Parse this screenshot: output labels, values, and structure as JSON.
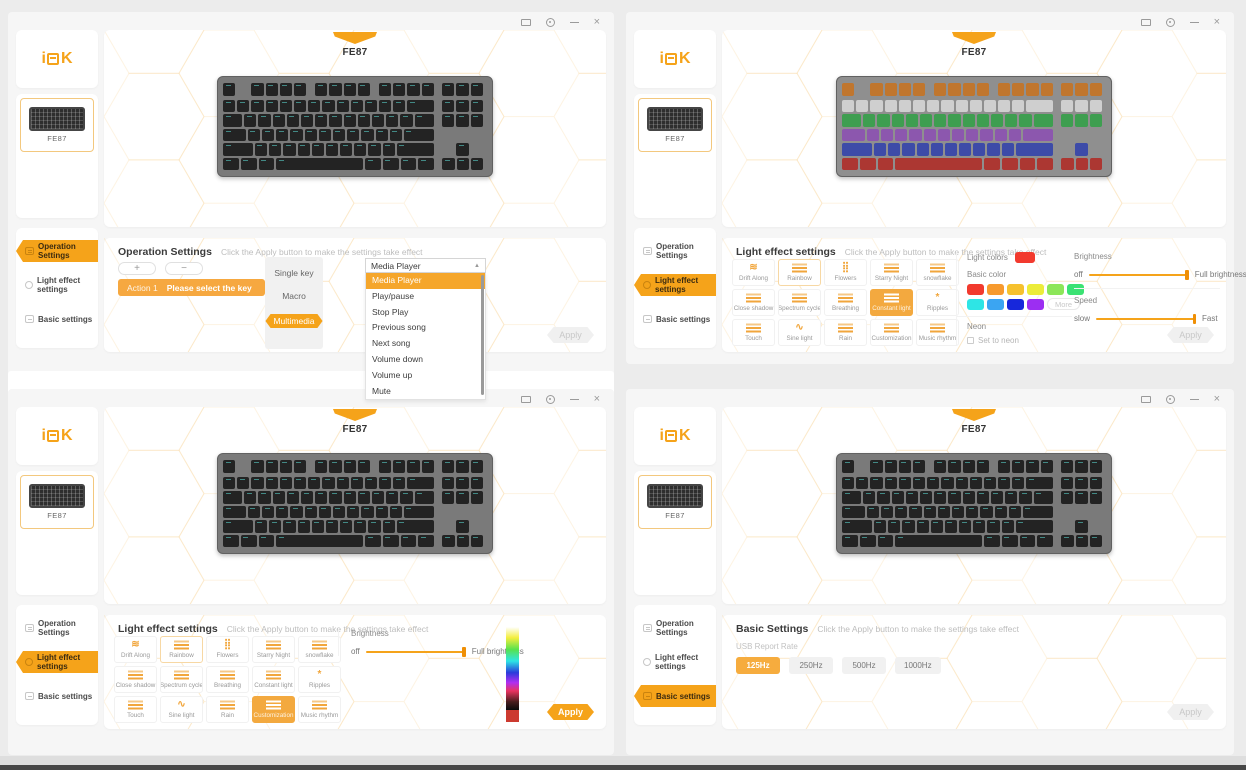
{
  "app": {
    "logo": {
      "left": "i",
      "right": "K"
    },
    "window_controls": {
      "restore": "restore-window",
      "settings": "settings-gear",
      "minimize": "minimize",
      "close": "close"
    }
  },
  "shared": {
    "title": "FE87",
    "device_label": "FE87",
    "hint": "Click the Apply button to make the settings take effect",
    "close_glyph": "×",
    "dropdown_arrow": "▲"
  },
  "keyboard": {
    "body": "#7A7A7A",
    "key": "#232323",
    "legend_teal": "#56CDC6",
    "rgb_rows": [
      "#C0762E",
      "#CFCFCF",
      "#3E9E50",
      "#8C57AE",
      "#3D4BA8",
      "#AC3732"
    ]
  },
  "windows": [
    {
      "name": "operation-settings",
      "menu": [
        {
          "label": "Operation Settings",
          "icon": "keyboard",
          "active": true
        },
        {
          "label": "Light effect settings",
          "icon": "bulb",
          "active": false
        },
        {
          "label": "Basic settings",
          "icon": "card",
          "active": false
        }
      ],
      "panel": {
        "header": "Operation Settings",
        "add": "+",
        "remove": "−",
        "action_label": "Action 1",
        "action_hint": "Please select the key",
        "modes": [
          {
            "label": "Single key",
            "active": false
          },
          {
            "label": "Macro",
            "active": false
          },
          {
            "label": "Multimedia",
            "active": true
          }
        ],
        "dropdown": {
          "value": "Media Player",
          "options": [
            {
              "label": "Media Player",
              "selected": true
            },
            {
              "label": "Play/pause",
              "selected": false
            },
            {
              "label": "Stop Play",
              "selected": false
            },
            {
              "label": "Previous song",
              "selected": false
            },
            {
              "label": "Next song",
              "selected": false
            },
            {
              "label": "Volume down",
              "selected": false
            },
            {
              "label": "Volume up",
              "selected": false
            },
            {
              "label": "Mute",
              "selected": false
            }
          ]
        },
        "apply": "Apply"
      }
    },
    {
      "name": "light-effect-constant",
      "menu": [
        {
          "label": "Operation Settings",
          "icon": "keyboard",
          "active": false
        },
        {
          "label": "Light effect settings",
          "icon": "bulb",
          "active": true
        },
        {
          "label": "Basic settings",
          "icon": "card",
          "active": false
        }
      ],
      "panel": {
        "header": "Light effect settings",
        "effects": [
          {
            "label": "Drift Along"
          },
          {
            "label": "Rainbow",
            "outlined": true
          },
          {
            "label": "Flowers"
          },
          {
            "label": "Starry Night"
          },
          {
            "label": "snowflake"
          },
          {
            "label": "Close shadow"
          },
          {
            "label": "Spectrum cycle"
          },
          {
            "label": "Breathing"
          },
          {
            "label": "Constant light",
            "active": true
          },
          {
            "label": "Ripples"
          },
          {
            "label": "Touch"
          },
          {
            "label": "Sine light"
          },
          {
            "label": "Rain"
          },
          {
            "label": "Customization"
          },
          {
            "label": "Music rhythm"
          }
        ],
        "light_colors_label": "Light colors",
        "light_color": "#F23A2E",
        "basic_color_label": "Basic color",
        "palette": [
          "#F23A2E",
          "#F79A2E",
          "#F6C12E",
          "#ECEC3A",
          "#8CE659",
          "#3BE273",
          "#2EE5E5",
          "#3BA5F2",
          "#1727DB",
          "#9C2EF2"
        ],
        "more_label": "More",
        "neon_label": "Neon",
        "neon_checkbox": "Set to neon",
        "brightness": {
          "label": "Brightness",
          "min": "off",
          "max": "Full brightness"
        },
        "speed": {
          "label": "Speed",
          "min": "slow",
          "max": "Fast"
        },
        "apply": "Apply"
      }
    },
    {
      "name": "light-effect-customization",
      "menu": [
        {
          "label": "Operation Settings",
          "icon": "keyboard",
          "active": false
        },
        {
          "label": "Light effect settings",
          "icon": "bulb",
          "active": true
        },
        {
          "label": "Basic settings",
          "icon": "card",
          "active": false
        }
      ],
      "panel": {
        "header": "Light effect settings",
        "effects": [
          {
            "label": "Drift Along"
          },
          {
            "label": "Rainbow",
            "outlined": true
          },
          {
            "label": "Flowers"
          },
          {
            "label": "Starry Night"
          },
          {
            "label": "snowflake"
          },
          {
            "label": "Close shadow"
          },
          {
            "label": "Spectrum cycle"
          },
          {
            "label": "Breathing"
          },
          {
            "label": "Constant light"
          },
          {
            "label": "Ripples"
          },
          {
            "label": "Touch"
          },
          {
            "label": "Sine light"
          },
          {
            "label": "Rain"
          },
          {
            "label": "Customization",
            "active": true
          },
          {
            "label": "Music rhythm"
          }
        ],
        "brightness": {
          "label": "Brightness",
          "min": "off",
          "max": "Full brightness"
        },
        "picker_color": "#CC3A30",
        "apply": "Apply"
      }
    },
    {
      "name": "basic-settings",
      "menu": [
        {
          "label": "Operation Settings",
          "icon": "keyboard",
          "active": false
        },
        {
          "label": "Light effect settings",
          "icon": "bulb",
          "active": false
        },
        {
          "label": "Basic settings",
          "icon": "card",
          "active": true
        }
      ],
      "panel": {
        "header": "Basic Settings",
        "usb_label": "USB Report Rate",
        "rates": [
          {
            "label": "125Hz",
            "active": true
          },
          {
            "label": "250Hz",
            "active": false
          },
          {
            "label": "500Hz",
            "active": false
          },
          {
            "label": "1000Hz",
            "active": false
          }
        ],
        "apply": "Apply"
      }
    }
  ]
}
